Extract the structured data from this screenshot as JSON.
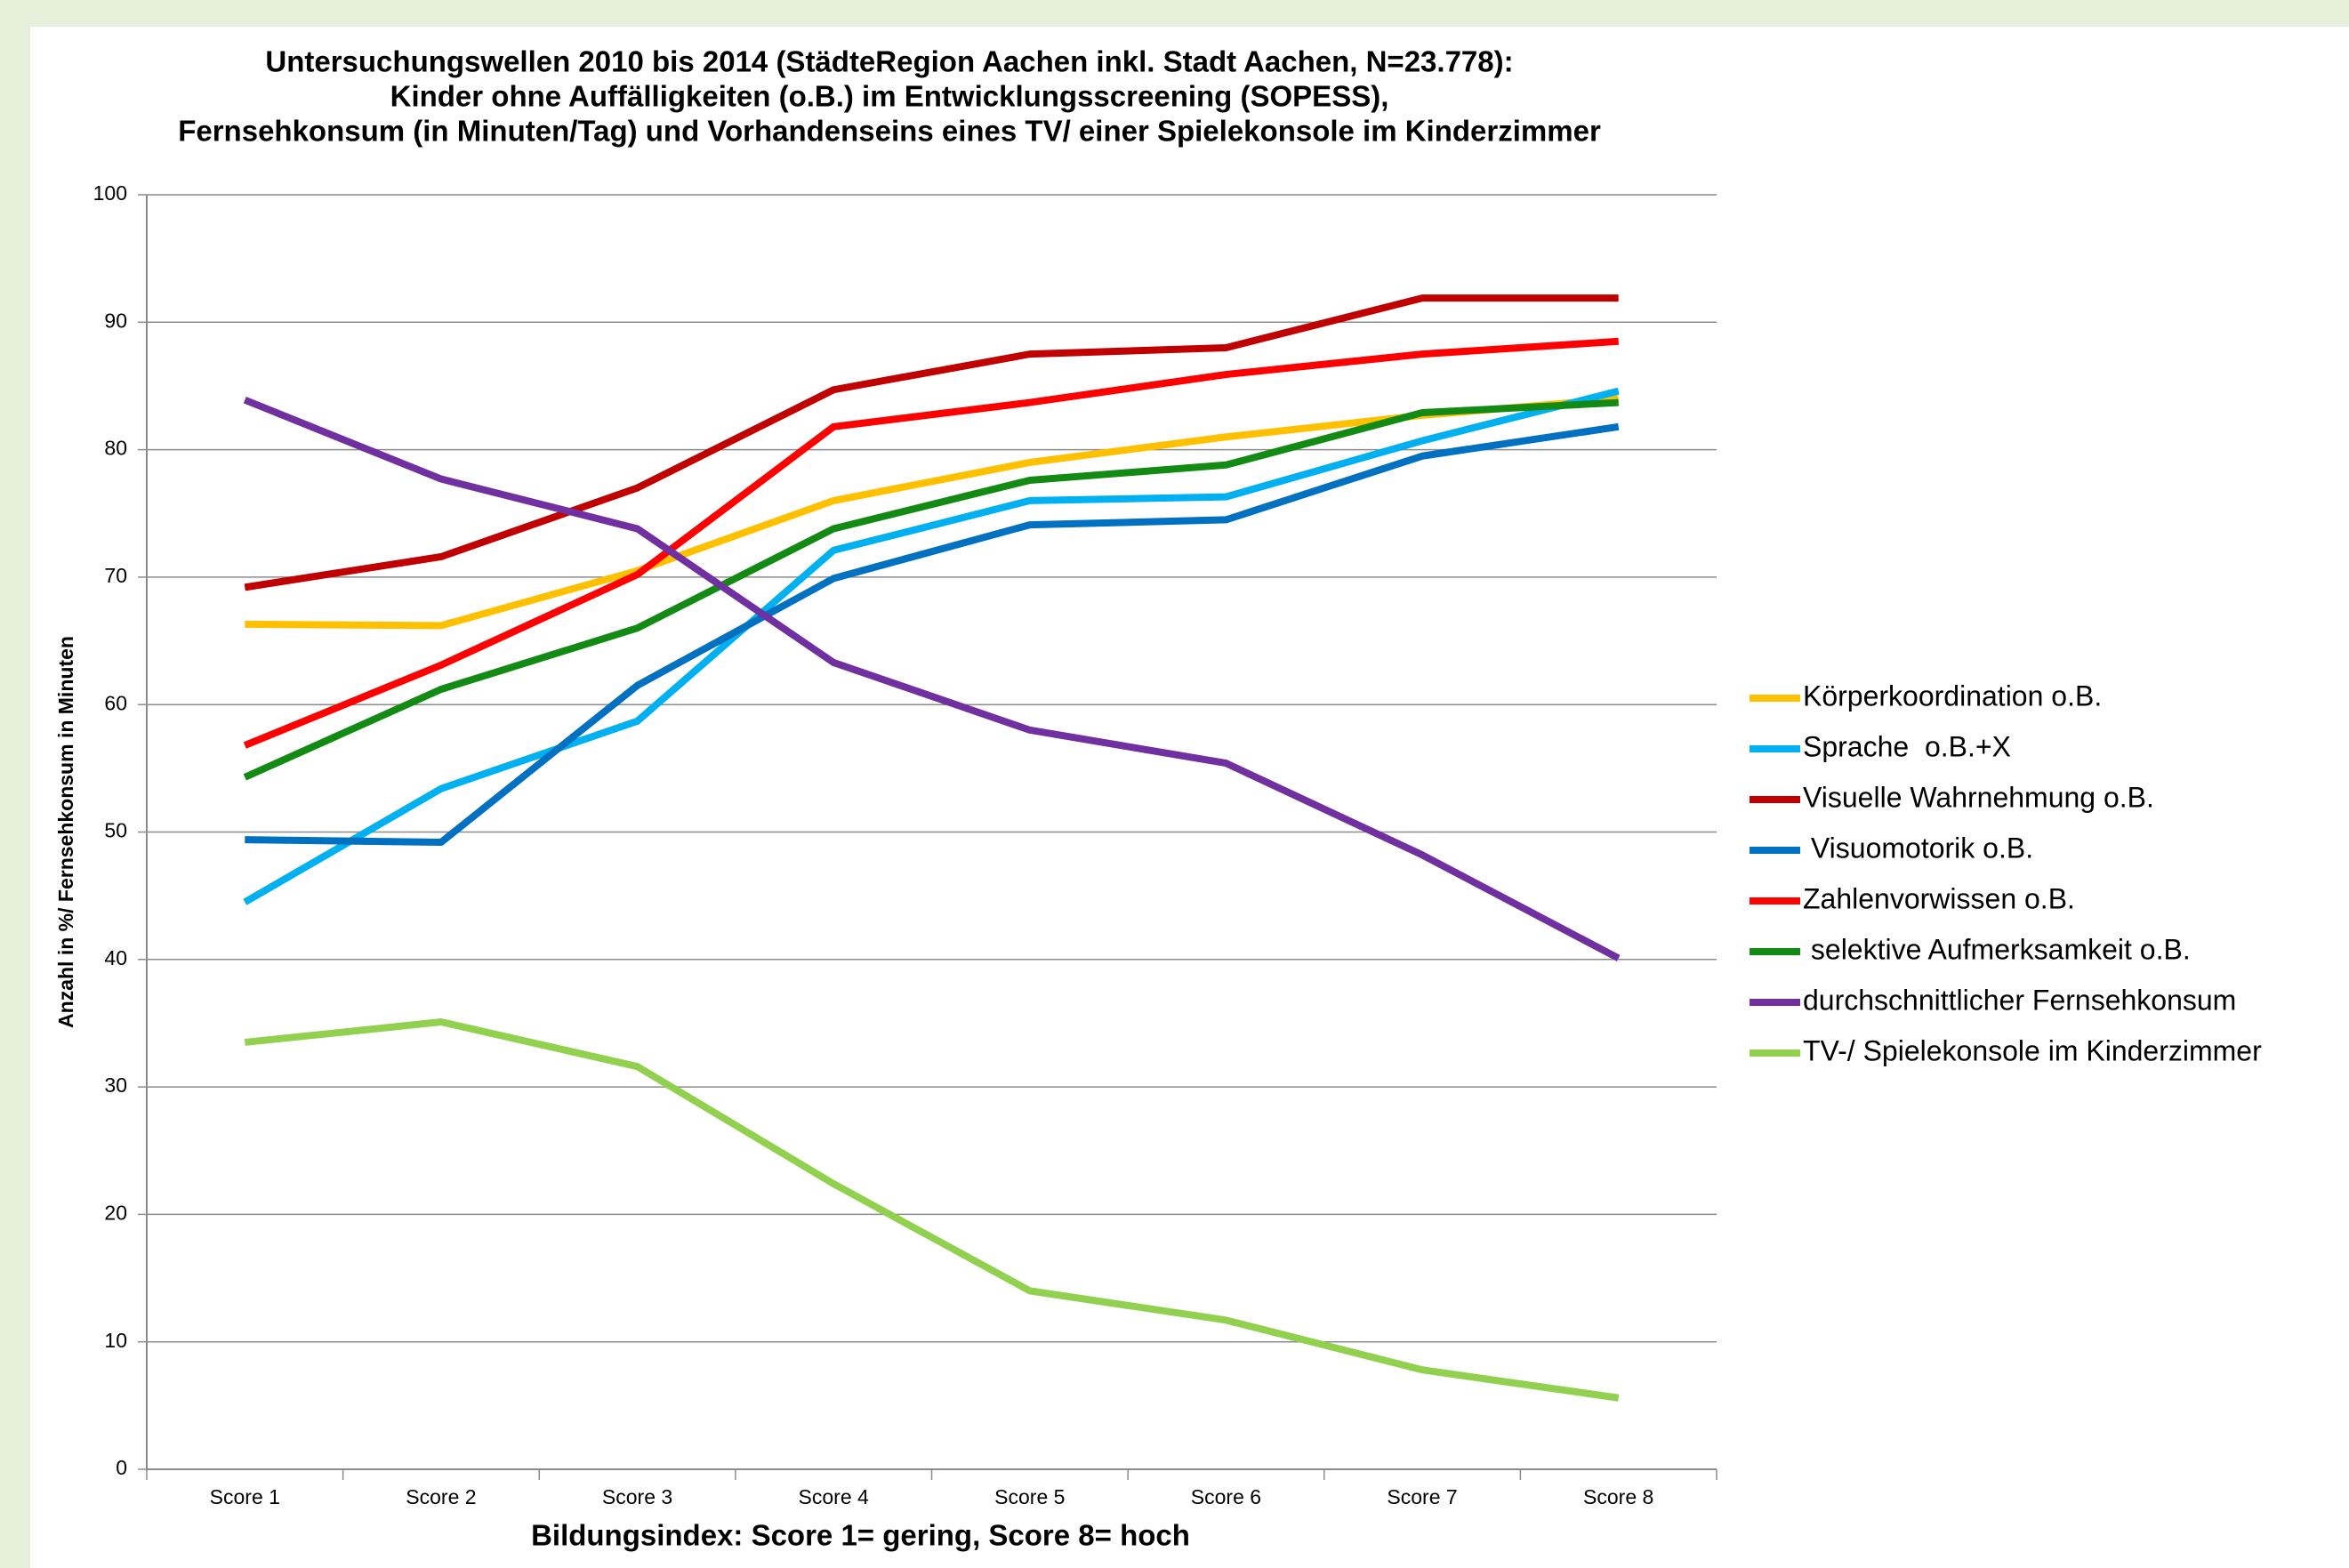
{
  "chart_data": {
    "type": "line",
    "title": [
      "Untersuchungswellen 2010 bis 2014 (StädteRegion Aachen inkl. Stadt Aachen, N=23.778):",
      "Kinder ohne Auffälligkeiten (o.B.) im Entwicklungsscreening (SOPESS),",
      "Fernsehkonsum (in Minuten/Tag) und Vorhandenseins eines TV/ einer Spielekonsole im Kinderzimmer"
    ],
    "x_label": "Bildungsindex: Score 1= gering, Score 8= hoch",
    "y_label": "Anzahl in %/ Fernsehkonsum in Minuten",
    "categories": [
      "Score 1",
      "Score 2",
      "Score 3",
      "Score 4",
      "Score 5",
      "Score 6",
      "Score 7",
      "Score 8"
    ],
    "series": [
      {
        "name": "Körperkoordination o.B.",
        "color": "#ffc000",
        "values": [
          66.3,
          66.2,
          70.5,
          76,
          79,
          81,
          82.7,
          84
        ]
      },
      {
        "name": "Sprache  o.B.+X",
        "color": "#00b0f0",
        "values": [
          44.5,
          53.4,
          58.7,
          72.1,
          76,
          76.3,
          80.7,
          84.6
        ]
      },
      {
        "name": "Visuelle Wahrnehmung o.B.",
        "color": "#c00000",
        "values": [
          69.2,
          71.6,
          77,
          84.7,
          87.5,
          88,
          91.9,
          91.9
        ]
      },
      {
        "name": " Visuomotorik o.B.",
        "color": "#0070c0",
        "values": [
          49.4,
          49.2,
          61.5,
          69.9,
          74.1,
          74.5,
          79.5,
          81.8
        ]
      },
      {
        "name": "Zahlenvorwissen o.B.",
        "color": "#ff0000",
        "values": [
          56.8,
          63.1,
          70.2,
          81.8,
          83.7,
          85.9,
          87.5,
          88.5
        ]
      },
      {
        "name": " selektive Aufmerksamkeit o.B.",
        "color": "#138a13",
        "values": [
          54.3,
          61.2,
          66,
          73.8,
          77.6,
          78.8,
          82.9,
          83.7
        ]
      },
      {
        "name": "durchschnittlicher Fernsehkonsum",
        "color": "#7030a0",
        "values": [
          83.9,
          77.7,
          73.8,
          63.3,
          58,
          55.4,
          48.2,
          40.1
        ]
      },
      {
        "name": "TV-/ Spielekonsole im Kinderzimmer",
        "color": "#92d050",
        "values": [
          33.5,
          35.1,
          31.6,
          22.4,
          14,
          11.7,
          7.8,
          5.6
        ]
      }
    ],
    "ylim": [
      0,
      100
    ],
    "yticks": [
      0,
      10,
      20,
      30,
      40,
      50,
      60,
      70,
      80,
      90,
      100
    ],
    "grid": true,
    "legend": "right"
  }
}
